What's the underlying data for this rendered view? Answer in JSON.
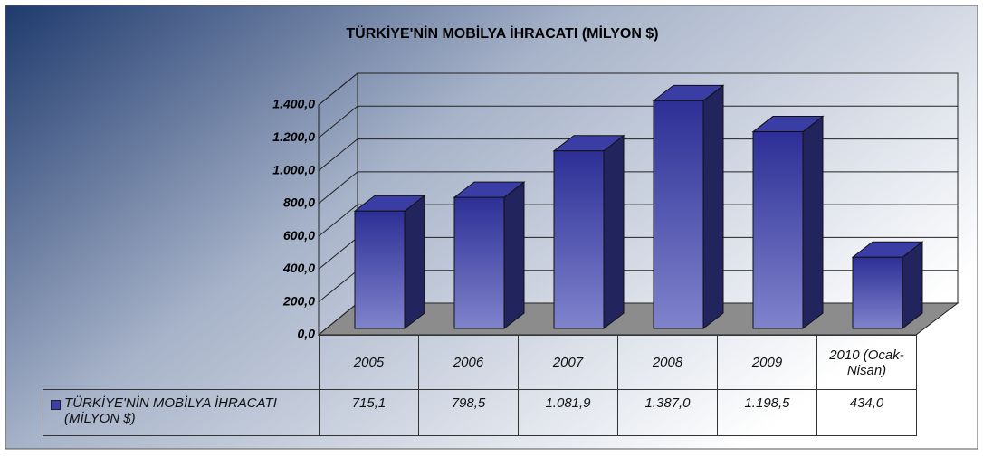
{
  "chart_data": {
    "type": "bar",
    "title": "TÜRKİYE'NİN MOBİLYA İHRACATI (MİLYON $)",
    "categories": [
      "2005",
      "2006",
      "2007",
      "2008",
      "2009",
      "2010 (Ocak-Nisan)"
    ],
    "series": [
      {
        "name": "TÜRKİYE'NİN MOBİLYA İHRACATI (MİLYON $)",
        "color": "#3b3fa6",
        "values": [
          715.1,
          798.5,
          1081.9,
          1387.0,
          1198.5,
          434.0
        ],
        "value_labels": [
          "715,1",
          "798,5",
          "1.081,9",
          "1.387,0",
          "1.198,5",
          "434,0"
        ]
      }
    ],
    "ylim": [
      0,
      1400
    ],
    "yticks": [
      {
        "value": 0,
        "label": "0,0"
      },
      {
        "value": 200,
        "label": "200,0"
      },
      {
        "value": 400,
        "label": "400,0"
      },
      {
        "value": 600,
        "label": "600,0"
      },
      {
        "value": 800,
        "label": "800,0"
      },
      {
        "value": 1000,
        "label": "1.000,0"
      },
      {
        "value": 1200,
        "label": "1.200,0"
      },
      {
        "value": 1400,
        "label": "1.400,0"
      }
    ],
    "grid": true
  }
}
